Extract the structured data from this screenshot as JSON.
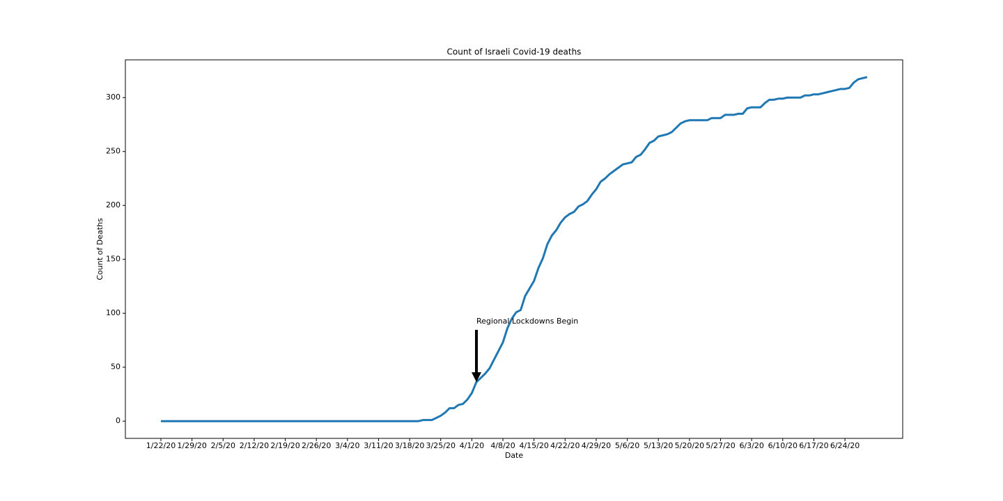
{
  "chart_data": {
    "type": "line",
    "title": "Count of Israeli Covid-19 deaths",
    "x_label": "Date",
    "y_label": "Count of Deaths",
    "annotation": "Regional Lockdowns Begin",
    "x": [
      "1/22/20",
      "1/23/20",
      "1/24/20",
      "1/25/20",
      "1/26/20",
      "1/27/20",
      "1/28/20",
      "1/29/20",
      "1/30/20",
      "1/31/20",
      "2/1/20",
      "2/2/20",
      "2/3/20",
      "2/4/20",
      "2/5/20",
      "2/6/20",
      "2/7/20",
      "2/8/20",
      "2/9/20",
      "2/10/20",
      "2/11/20",
      "2/12/20",
      "2/13/20",
      "2/14/20",
      "2/15/20",
      "2/16/20",
      "2/17/20",
      "2/18/20",
      "2/19/20",
      "2/20/20",
      "2/21/20",
      "2/22/20",
      "2/23/20",
      "2/24/20",
      "2/25/20",
      "2/26/20",
      "2/27/20",
      "2/28/20",
      "2/29/20",
      "3/1/20",
      "3/2/20",
      "3/3/20",
      "3/4/20",
      "3/5/20",
      "3/6/20",
      "3/7/20",
      "3/8/20",
      "3/9/20",
      "3/10/20",
      "3/11/20",
      "3/12/20",
      "3/13/20",
      "3/14/20",
      "3/15/20",
      "3/16/20",
      "3/17/20",
      "3/18/20",
      "3/19/20",
      "3/20/20",
      "3/21/20",
      "3/22/20",
      "3/23/20",
      "3/24/20",
      "3/25/20",
      "3/26/20",
      "3/27/20",
      "3/28/20",
      "3/29/20",
      "3/30/20",
      "3/31/20",
      "4/1/20",
      "4/2/20",
      "4/3/20",
      "4/4/20",
      "4/5/20",
      "4/6/20",
      "4/7/20",
      "4/8/20",
      "4/9/20",
      "4/10/20",
      "4/11/20",
      "4/12/20",
      "4/13/20",
      "4/14/20",
      "4/15/20",
      "4/16/20",
      "4/17/20",
      "4/18/20",
      "4/19/20",
      "4/20/20",
      "4/21/20",
      "4/22/20",
      "4/23/20",
      "4/24/20",
      "4/25/20",
      "4/26/20",
      "4/27/20",
      "4/28/20",
      "4/29/20",
      "4/30/20",
      "5/1/20",
      "5/2/20",
      "5/3/20",
      "5/4/20",
      "5/5/20",
      "5/6/20",
      "5/7/20",
      "5/8/20",
      "5/9/20",
      "5/10/20",
      "5/11/20",
      "5/12/20",
      "5/13/20",
      "5/14/20",
      "5/15/20",
      "5/16/20",
      "5/17/20",
      "5/18/20",
      "5/19/20",
      "5/20/20",
      "5/21/20",
      "5/22/20",
      "5/23/20",
      "5/24/20",
      "5/25/20",
      "5/26/20",
      "5/27/20",
      "5/28/20",
      "5/29/20",
      "5/30/20",
      "5/31/20",
      "6/1/20",
      "6/2/20",
      "6/3/20",
      "6/4/20",
      "6/5/20",
      "6/6/20",
      "6/7/20",
      "6/8/20",
      "6/9/20",
      "6/10/20",
      "6/11/20",
      "6/12/20",
      "6/13/20",
      "6/14/20",
      "6/15/20",
      "6/16/20",
      "6/17/20",
      "6/18/20",
      "6/19/20",
      "6/20/20",
      "6/21/20",
      "6/22/20",
      "6/23/20",
      "6/24/20",
      "6/25/20",
      "6/26/20",
      "6/27/20",
      "6/28/20",
      "6/29/20"
    ],
    "series": [
      {
        "name": "deaths",
        "color": "#1f77b4",
        "values": [
          0,
          0,
          0,
          0,
          0,
          0,
          0,
          0,
          0,
          0,
          0,
          0,
          0,
          0,
          0,
          0,
          0,
          0,
          0,
          0,
          0,
          0,
          0,
          0,
          0,
          0,
          0,
          0,
          0,
          0,
          0,
          0,
          0,
          0,
          0,
          0,
          0,
          0,
          0,
          0,
          0,
          0,
          0,
          0,
          0,
          0,
          0,
          0,
          0,
          0,
          0,
          0,
          0,
          0,
          0,
          0,
          0,
          0,
          0,
          1,
          1,
          1,
          3,
          5,
          8,
          12,
          12,
          15,
          16,
          20,
          26,
          36,
          40,
          44,
          49,
          57,
          65,
          73,
          86,
          95,
          101,
          103,
          116,
          123,
          130,
          142,
          151,
          164,
          172,
          177,
          184,
          189,
          192,
          194,
          199,
          201,
          204,
          210,
          215,
          222,
          225,
          229,
          232,
          235,
          238,
          239,
          240,
          245,
          247,
          252,
          258,
          260,
          264,
          265,
          266,
          268,
          272,
          276,
          278,
          279,
          279,
          279,
          279,
          279,
          281,
          281,
          281,
          284,
          284,
          284,
          285,
          285,
          290,
          291,
          291,
          291,
          295,
          298,
          298,
          299,
          299,
          300,
          300,
          300,
          300,
          302,
          302,
          303,
          303,
          304,
          305,
          306,
          307,
          308,
          308,
          309,
          314,
          317,
          318,
          319
        ]
      }
    ],
    "xticks": [
      "1/22/20",
      "1/29/20",
      "2/5/20",
      "2/12/20",
      "2/19/20",
      "2/26/20",
      "3/4/20",
      "3/11/20",
      "3/18/20",
      "3/25/20",
      "4/1/20",
      "4/8/20",
      "4/15/20",
      "4/22/20",
      "4/29/20",
      "5/6/20",
      "5/13/20",
      "5/20/20",
      "5/27/20",
      "6/3/20",
      "6/10/20",
      "6/17/20",
      "6/24/20"
    ],
    "ylim": [
      -16,
      335
    ],
    "yticks": [
      0,
      50,
      100,
      150,
      200,
      250,
      300
    ],
    "grid": false
  }
}
